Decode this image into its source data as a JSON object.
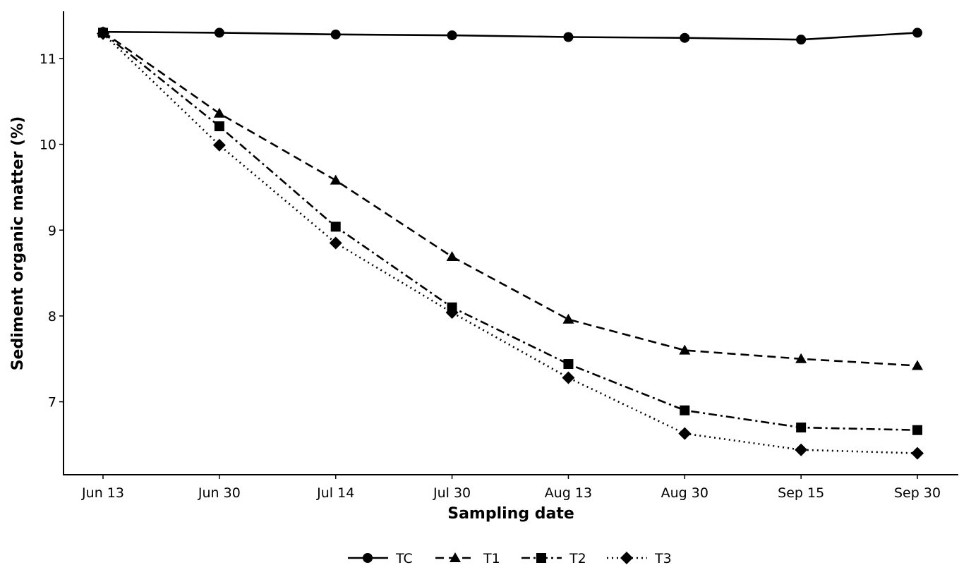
{
  "chart_data": {
    "type": "line",
    "xlabel": "Sampling date",
    "ylabel": "Sediment organic matter (%)",
    "categories": [
      "Jun 13",
      "Jun 30",
      "Jul 14",
      "Jul 30",
      "Aug 13",
      "Aug 30",
      "Sep 15",
      "Sep 30"
    ],
    "ylim": [
      6.15,
      11.55
    ],
    "yticks": [
      7,
      8,
      9,
      10,
      11
    ],
    "grid": false,
    "legend_position": "bottom-center",
    "series": [
      {
        "name": "TC",
        "marker": "circle",
        "line_style": "solid",
        "values": [
          11.31,
          11.3,
          11.28,
          11.27,
          11.25,
          11.24,
          11.22,
          11.3
        ]
      },
      {
        "name": "T1",
        "marker": "triangle",
        "line_style": "dashed",
        "values": [
          11.31,
          10.36,
          9.58,
          8.69,
          7.96,
          7.6,
          7.5,
          7.42
        ]
      },
      {
        "name": "T2",
        "marker": "square",
        "line_style": "dash-dot",
        "values": [
          11.3,
          10.21,
          9.04,
          8.1,
          7.44,
          6.9,
          6.7,
          6.67
        ]
      },
      {
        "name": "T3",
        "marker": "diamond",
        "line_style": "dotted",
        "values": [
          11.29,
          9.99,
          8.85,
          8.04,
          7.28,
          6.63,
          6.44,
          6.4
        ]
      }
    ]
  }
}
